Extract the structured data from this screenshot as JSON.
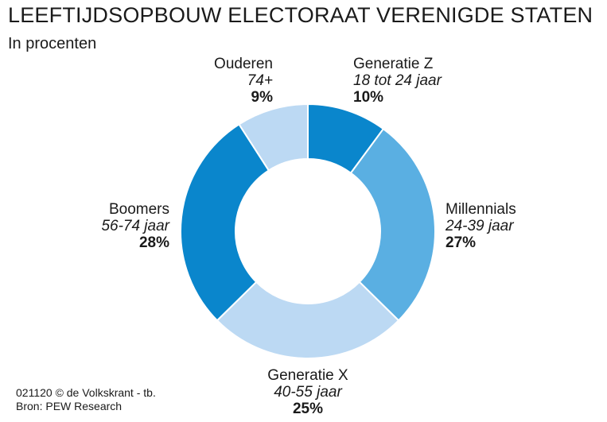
{
  "header": {
    "title": "LEEFTIJDSOPBOUW ELECTORAAT VERENIGDE STATEN",
    "subtitle": "In procenten"
  },
  "chart_data": {
    "type": "pie",
    "donut": true,
    "title": "LEEFTIJDSOPBOUW ELECTORAAT VERENIGDE STATEN",
    "subtitle": "In procenten",
    "slices": [
      {
        "name": "Generatie Z",
        "range": "18 tot 24 jaar",
        "value": 10,
        "label": "10%",
        "color": "#0a86cc"
      },
      {
        "name": "Millennials",
        "range": "24-39 jaar",
        "value": 27,
        "label": "27%",
        "color": "#5aafe2"
      },
      {
        "name": "Generatie X",
        "range": "40-55 jaar",
        "value": 25,
        "label": "25%",
        "color": "#bcd9f3"
      },
      {
        "name": "Boomers",
        "range": "56-74 jaar",
        "value": 28,
        "label": "28%",
        "color": "#0a86cc"
      },
      {
        "name": "Ouderen",
        "range": "74+",
        "value": 9,
        "label": "9%",
        "color": "#bcd9f3"
      }
    ]
  },
  "footer": {
    "credit": "021120 © de Volkskrant - tb.",
    "source": "Bron: PEW Research"
  }
}
